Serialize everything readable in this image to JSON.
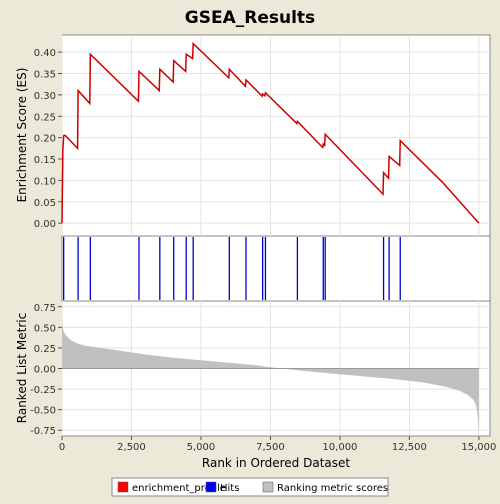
{
  "title": "GSEA_Results",
  "colors": {
    "background": "#ece9d8",
    "plot_bg": "#ffffff",
    "enrichment": "#cc0000",
    "hits": "#0000cc",
    "ranking": "#c0c0c0"
  },
  "legend": {
    "items": [
      {
        "label": "enrichment_profile",
        "color": "#ff0000"
      },
      {
        "label": "Hits",
        "color": "#0000ff"
      },
      {
        "label": "Ranking metric scores",
        "color": "#c0c0c0"
      }
    ]
  },
  "chart_data": [
    {
      "type": "line",
      "name": "enrichment_profile",
      "ylabel": "Enrichment Score (ES)",
      "xlim": [
        0,
        15400
      ],
      "ylim": [
        -0.03,
        0.44
      ],
      "yticks": [
        "0.00",
        "0.05",
        "0.10",
        "0.15",
        "0.20",
        "0.25",
        "0.30",
        "0.35",
        "0.40"
      ],
      "x": [
        0,
        30,
        60,
        120,
        560,
        580,
        1000,
        1020,
        2750,
        2770,
        3500,
        3520,
        4000,
        4020,
        4450,
        4470,
        4700,
        4720,
        6000,
        6020,
        6600,
        6620,
        7200,
        7220,
        7300,
        7320,
        8450,
        8470,
        9380,
        9400,
        9450,
        9470,
        11550,
        11570,
        11750,
        11770,
        12150,
        12170,
        13700,
        15000
      ],
      "y": [
        0.0,
        0.17,
        0.205,
        0.205,
        0.175,
        0.31,
        0.28,
        0.395,
        0.285,
        0.355,
        0.31,
        0.36,
        0.33,
        0.38,
        0.355,
        0.395,
        0.385,
        0.42,
        0.34,
        0.36,
        0.32,
        0.335,
        0.297,
        0.302,
        0.298,
        0.305,
        0.233,
        0.238,
        0.177,
        0.185,
        0.182,
        0.208,
        0.068,
        0.118,
        0.105,
        0.156,
        0.135,
        0.193,
        0.095,
        0.0
      ]
    },
    {
      "type": "scatter",
      "name": "Hits",
      "x": [
        60,
        580,
        1020,
        2770,
        3520,
        4020,
        4470,
        4720,
        6020,
        6620,
        7220,
        7320,
        8470,
        9400,
        9470,
        11570,
        11770,
        12170
      ]
    },
    {
      "type": "area",
      "name": "Ranking metric scores",
      "xlabel": "Rank in Ordered Dataset",
      "ylabel": "Ranked List Metric",
      "xlim": [
        0,
        15400
      ],
      "ylim": [
        -0.82,
        0.82
      ],
      "yticks": [
        "0.75",
        "0.50",
        "0.25",
        "0.00",
        "-0.25",
        "-0.50",
        "-0.75"
      ],
      "xticks": [
        "0",
        "2,500",
        "5,000",
        "7,500",
        "10,000",
        "12,500",
        "15,000"
      ],
      "x": [
        0,
        20,
        60,
        150,
        300,
        500,
        800,
        1200,
        2000,
        3000,
        4000,
        5000,
        6000,
        7000,
        7500,
        8000,
        9000,
        10000,
        11000,
        12000,
        13000,
        13800,
        14300,
        14600,
        14800,
        14900,
        14950,
        15000
      ],
      "y": [
        0.58,
        0.52,
        0.45,
        0.4,
        0.35,
        0.31,
        0.28,
        0.26,
        0.22,
        0.17,
        0.13,
        0.1,
        0.07,
        0.04,
        0.015,
        -0.005,
        -0.04,
        -0.07,
        -0.1,
        -0.13,
        -0.17,
        -0.22,
        -0.27,
        -0.32,
        -0.38,
        -0.45,
        -0.55,
        -0.78
      ]
    }
  ]
}
